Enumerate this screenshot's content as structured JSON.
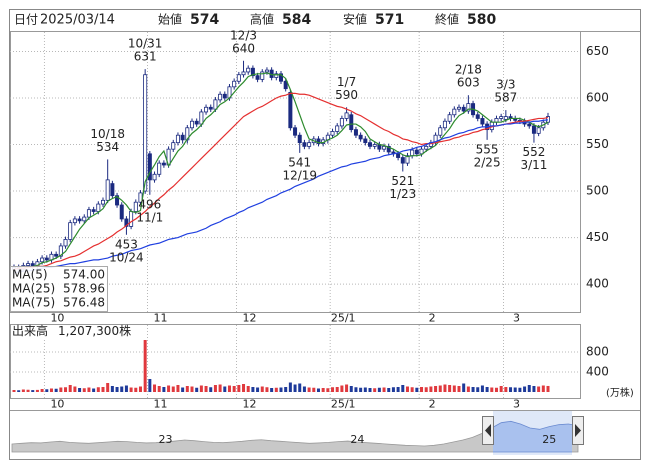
{
  "header": {
    "date_label": "日付",
    "date": "2025/03/14",
    "fields": [
      {
        "label": "始値",
        "value": 574,
        "color": "#222222"
      },
      {
        "label": "高値",
        "value": 584,
        "color": "#d81b1b"
      },
      {
        "label": "安値",
        "value": 571,
        "color": "#1a8a1a"
      },
      {
        "label": "終値",
        "value": 580,
        "color": "#222222"
      }
    ]
  },
  "chart_data": [
    {
      "type": "candlestick",
      "categories": [
        null,
        null,
        null,
        null,
        null,
        null,
        null,
        "10",
        null,
        null,
        null,
        null,
        null,
        null,
        null,
        null,
        null,
        null,
        null,
        null,
        null,
        null,
        null,
        null,
        null,
        null,
        null,
        null,
        null,
        "11",
        null,
        null,
        null,
        null,
        null,
        null,
        null,
        null,
        null,
        null,
        null,
        null,
        null,
        null,
        null,
        null,
        null,
        null,
        "12",
        null,
        null,
        null,
        null,
        null,
        null,
        null,
        null,
        null,
        null,
        null,
        null,
        null,
        null,
        null,
        null,
        null,
        null,
        null,
        "25/1",
        null,
        null,
        null,
        null,
        null,
        null,
        null,
        null,
        null,
        null,
        null,
        null,
        null,
        null,
        null,
        null,
        null,
        null,
        "2",
        null,
        null,
        null,
        null,
        null,
        null,
        null,
        null,
        null,
        null,
        null,
        null,
        null,
        null,
        null,
        null,
        null,
        "3",
        null,
        null,
        null,
        null,
        null,
        null,
        null,
        null,
        null
      ],
      "open": [
        415,
        418,
        416,
        420,
        422,
        419,
        424,
        428,
        426,
        432,
        430,
        441,
        448,
        466,
        470,
        468,
        472,
        480,
        478,
        486,
        490,
        508,
        495,
        485,
        470,
        462,
        478,
        488,
        500,
        540,
        512,
        518,
        530,
        528,
        545,
        552,
        560,
        555,
        568,
        575,
        572,
        585,
        590,
        588,
        598,
        604,
        600,
        612,
        618,
        625,
        628,
        632,
        624,
        620,
        628,
        630,
        622,
        626,
        618,
        606,
        568,
        560,
        552,
        548,
        552,
        556,
        551,
        555,
        560,
        564,
        570,
        578,
        582,
        566,
        560,
        556,
        552,
        548,
        550,
        545,
        548,
        542,
        540,
        536,
        530,
        538,
        544,
        540,
        545,
        548,
        552,
        560,
        568,
        575,
        582,
        588,
        590,
        586,
        594,
        582,
        578,
        572,
        566,
        574,
        578,
        577,
        580,
        578,
        576,
        575,
        572,
        570,
        562,
        568,
        574
      ],
      "high": [
        421,
        421,
        423,
        425,
        425,
        427,
        431,
        431,
        435,
        435,
        444,
        451,
        469,
        473,
        473,
        475,
        483,
        483,
        489,
        493,
        534,
        511,
        498,
        488,
        473,
        481,
        491,
        501,
        631,
        543,
        521,
        533,
        533,
        548,
        555,
        563,
        563,
        571,
        578,
        578,
        588,
        593,
        593,
        601,
        607,
        607,
        615,
        621,
        628,
        640,
        635,
        635,
        627,
        631,
        633,
        633,
        629,
        629,
        621,
        609,
        571,
        563,
        555,
        555,
        559,
        559,
        558,
        563,
        567,
        573,
        581,
        590,
        585,
        569,
        563,
        559,
        555,
        553,
        553,
        551,
        551,
        545,
        543,
        539,
        541,
        547,
        547,
        548,
        551,
        555,
        563,
        571,
        578,
        585,
        591,
        593,
        593,
        603,
        597,
        585,
        581,
        575,
        577,
        581,
        583,
        587,
        583,
        581,
        579,
        578,
        575,
        573,
        571,
        577,
        584
      ],
      "low": [
        412,
        413,
        413,
        417,
        416,
        416,
        421,
        423,
        423,
        427,
        427,
        438,
        445,
        463,
        465,
        465,
        469,
        475,
        475,
        483,
        487,
        492,
        482,
        467,
        453,
        459,
        475,
        485,
        497,
        496,
        509,
        515,
        525,
        525,
        542,
        549,
        551,
        551,
        565,
        569,
        569,
        582,
        585,
        585,
        595,
        597,
        597,
        609,
        615,
        622,
        625,
        621,
        617,
        617,
        625,
        619,
        619,
        615,
        607,
        565,
        557,
        541,
        545,
        545,
        549,
        548,
        548,
        551,
        557,
        561,
        567,
        575,
        563,
        557,
        553,
        549,
        545,
        545,
        542,
        542,
        539,
        537,
        533,
        521,
        527,
        535,
        537,
        537,
        542,
        545,
        549,
        557,
        565,
        572,
        579,
        585,
        583,
        583,
        579,
        575,
        569,
        555,
        563,
        571,
        575,
        574,
        575,
        573,
        572,
        569,
        567,
        552,
        559,
        565,
        571
      ],
      "close": [
        418,
        416,
        420,
        422,
        419,
        424,
        428,
        426,
        432,
        430,
        441,
        448,
        466,
        470,
        468,
        472,
        480,
        478,
        486,
        490,
        512,
        495,
        485,
        470,
        462,
        478,
        488,
        498,
        625,
        512,
        518,
        530,
        528,
        545,
        552,
        560,
        555,
        568,
        575,
        572,
        585,
        590,
        588,
        598,
        604,
        600,
        612,
        618,
        625,
        628,
        632,
        624,
        620,
        628,
        630,
        622,
        626,
        618,
        610,
        568,
        560,
        552,
        548,
        552,
        556,
        551,
        555,
        560,
        564,
        570,
        578,
        584,
        566,
        560,
        556,
        552,
        548,
        550,
        545,
        548,
        542,
        540,
        536,
        530,
        538,
        544,
        540,
        545,
        548,
        552,
        560,
        568,
        575,
        582,
        588,
        590,
        586,
        594,
        582,
        578,
        572,
        566,
        574,
        578,
        580,
        580,
        578,
        576,
        575,
        572,
        570,
        562,
        568,
        574,
        580
      ],
      "up_color": "#ffffff",
      "down_color": "#1b2a80",
      "edge_color": "#1b2a80",
      "ylim": [
        370,
        672
      ],
      "yticks": [
        400,
        450,
        500,
        550,
        600,
        650
      ],
      "grid": true,
      "legend": "bottom-left",
      "series": [
        {
          "name": "MA(5)",
          "color": "#2e8b2e",
          "legend_value": {
            "value": 574,
            "label": "574.00"
          },
          "values": [
            null,
            null,
            null,
            null,
            419,
            420,
            423,
            424,
            426,
            428,
            431,
            435,
            443,
            451,
            459,
            465,
            471,
            474,
            477,
            481,
            489,
            492,
            494,
            490,
            485,
            478,
            477,
            479,
            510,
            520,
            528,
            537,
            543,
            527,
            535,
            543,
            548,
            556,
            562,
            566,
            571,
            578,
            582,
            587,
            593,
            596,
            600,
            606,
            612,
            617,
            623,
            625,
            626,
            626,
            627,
            625,
            625,
            625,
            621,
            609,
            596,
            582,
            568,
            556,
            554,
            552,
            552,
            555,
            557,
            560,
            565,
            571,
            572,
            572,
            569,
            564,
            556,
            553,
            550,
            549,
            547,
            545,
            542,
            539,
            537,
            538,
            538,
            539,
            543,
            546,
            549,
            555,
            561,
            567,
            575,
            581,
            584,
            588,
            588,
            586,
            582,
            578,
            574,
            574,
            574,
            576,
            578,
            578,
            578,
            576,
            574,
            571,
            569,
            571,
            574
          ]
        },
        {
          "name": "MA(25)",
          "color": "#e53030",
          "legend_value": {
            "value": 578.96,
            "label": "578.96"
          },
          "values": [
            416,
            417,
            417,
            418,
            418,
            419,
            419,
            420,
            422,
            424,
            425,
            427,
            429,
            430,
            432,
            435,
            438,
            441,
            443,
            446,
            449,
            452,
            456,
            459,
            463,
            467,
            470,
            474,
            478,
            483,
            487,
            492,
            496,
            501,
            505,
            510,
            515,
            520,
            525,
            530,
            535,
            540,
            545,
            550,
            555,
            560,
            565,
            570,
            575,
            580,
            583,
            586,
            589,
            591,
            594,
            597,
            600,
            602,
            603,
            605,
            605,
            604,
            604,
            603,
            601,
            599,
            597,
            595,
            593,
            591,
            590,
            588,
            586,
            583,
            581,
            578,
            575,
            572,
            569,
            566,
            564,
            561,
            559,
            556,
            555,
            553,
            552,
            550,
            551,
            551,
            552,
            553,
            554,
            555,
            557,
            558,
            560,
            561,
            563,
            564,
            566,
            567,
            569,
            570,
            571,
            572,
            573,
            574,
            575,
            575,
            576,
            577,
            578,
            578,
            578.96
          ]
        },
        {
          "name": "MA(75)",
          "color": "#2040e0",
          "legend_value": {
            "value": 576.48,
            "label": "576.48"
          },
          "values": [
            412,
            413,
            414,
            414,
            415,
            416,
            417,
            418,
            418,
            419,
            420,
            421,
            422,
            422,
            423,
            424,
            425,
            426,
            426,
            427,
            428,
            430,
            431,
            432,
            434,
            436,
            437,
            438,
            440,
            442,
            443,
            444,
            446,
            448,
            449,
            450,
            452,
            454,
            455,
            456,
            458,
            460,
            463,
            465,
            467,
            470,
            472,
            474,
            477,
            479,
            482,
            484,
            486,
            488,
            491,
            493,
            495,
            498,
            500,
            502,
            505,
            507,
            509,
            511,
            513,
            516,
            518,
            520,
            522,
            524,
            526,
            527,
            529,
            530,
            531,
            532,
            534,
            535,
            536,
            538,
            539,
            540,
            541,
            543,
            544,
            545,
            547,
            548,
            550,
            552,
            553,
            555,
            557,
            558,
            560,
            562,
            563,
            565,
            566,
            568,
            569,
            569,
            570,
            570,
            571,
            572,
            572,
            573,
            573,
            574,
            574,
            575,
            575,
            576,
            576.48
          ]
        }
      ],
      "annotations": [
        {
          "date": "10/18",
          "value": 534,
          "kind": "high"
        },
        {
          "date": "10/24",
          "value": 453,
          "kind": "low"
        },
        {
          "date": "10/31",
          "value": 631,
          "kind": "high"
        },
        {
          "date": "11/1",
          "value": 496,
          "kind": "low"
        },
        {
          "date": "12/3",
          "value": 640,
          "kind": "high"
        },
        {
          "date": "12/19",
          "value": 541,
          "kind": "low"
        },
        {
          "date": "1/7",
          "value": 590,
          "kind": "high"
        },
        {
          "date": "1/23",
          "value": 521,
          "kind": "low"
        },
        {
          "date": "2/18",
          "value": 603,
          "kind": "high"
        },
        {
          "date": "2/25",
          "value": 555,
          "kind": "low"
        },
        {
          "date": "3/3",
          "value": 587,
          "kind": "high"
        },
        {
          "date": "3/11",
          "value": 552,
          "kind": "low"
        }
      ]
    },
    {
      "type": "bar",
      "title": "出来高",
      "latest": {
        "value": 120.73,
        "label": "1,207,300株"
      },
      "unit": "(万株)",
      "values": [
        40,
        35,
        50,
        45,
        38,
        42,
        60,
        55,
        70,
        65,
        90,
        95,
        140,
        110,
        80,
        75,
        90,
        70,
        95,
        100,
        180,
        120,
        100,
        110,
        130,
        90,
        85,
        110,
        1040,
        260,
        150,
        120,
        100,
        130,
        110,
        140,
        90,
        120,
        110,
        85,
        130,
        120,
        95,
        140,
        150,
        110,
        130,
        120,
        140,
        160,
        120,
        100,
        90,
        110,
        95,
        80,
        85,
        90,
        100,
        190,
        150,
        170,
        110,
        90,
        85,
        70,
        80,
        75,
        95,
        100,
        130,
        150,
        120,
        95,
        85,
        90,
        80,
        75,
        85,
        90,
        80,
        95,
        100,
        140,
        110,
        95,
        85,
        100,
        95,
        110,
        120,
        130,
        150,
        140,
        130,
        120,
        170,
        110,
        100,
        95,
        130,
        100,
        90,
        85,
        120,
        100,
        95,
        90,
        85,
        110,
        140,
        120,
        110,
        130,
        120.73
      ],
      "up_color": "#e0393e",
      "down_color": "#1e3a9a",
      "ylim": [
        0,
        1400
      ],
      "yticks": [
        400,
        800
      ],
      "grid": true
    },
    {
      "type": "area",
      "color": "#c8c8c8",
      "selected_color": "#a9c1ee",
      "categories": [
        null,
        null,
        null,
        null,
        null,
        null,
        null,
        null,
        null,
        null,
        null,
        null,
        null,
        null,
        null,
        null,
        "23",
        null,
        null,
        null,
        null,
        null,
        null,
        null,
        null,
        null,
        null,
        null,
        null,
        null,
        null,
        null,
        null,
        null,
        null,
        null,
        "24",
        null,
        null,
        null,
        null,
        null,
        null,
        null,
        null,
        null,
        null,
        null,
        null,
        null,
        null,
        null,
        null,
        null,
        null,
        null,
        "25",
        null,
        null,
        null
      ],
      "values": [
        440,
        445,
        450,
        448,
        455,
        460,
        452,
        448,
        445,
        450,
        455,
        460,
        458,
        452,
        448,
        450,
        455,
        462,
        470,
        465,
        458,
        452,
        450,
        455,
        460,
        468,
        472,
        465,
        460,
        455,
        450,
        445,
        448,
        452,
        458,
        462,
        455,
        450,
        445,
        440,
        435,
        430,
        428,
        425,
        430,
        440,
        455,
        470,
        490,
        520,
        560,
        600,
        610,
        590,
        560,
        550,
        570,
        585,
        590,
        578
      ],
      "ylim": [
        380,
        680
      ]
    }
  ]
}
